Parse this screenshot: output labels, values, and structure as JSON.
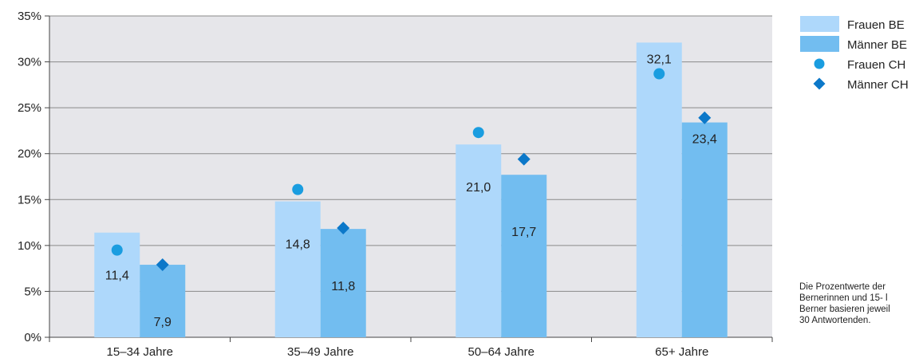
{
  "chart_data": {
    "type": "bar",
    "categories": [
      "15–34 Jahre",
      "35–49 Jahre",
      "50–64 Jahre",
      "65+ Jahre"
    ],
    "series": [
      {
        "name": "Frauen BE",
        "kind": "bar",
        "values": [
          11.4,
          14.8,
          21.0,
          32.1
        ],
        "labels": [
          "11,4",
          "14,8",
          "21,0",
          "32,1"
        ],
        "color": "#aed8fb"
      },
      {
        "name": "Männer BE",
        "kind": "bar",
        "values": [
          7.9,
          11.8,
          17.7,
          23.4
        ],
        "labels": [
          "7,9",
          "11,8",
          "17,7",
          "23,4"
        ],
        "color": "#72bdf0"
      },
      {
        "name": "Frauen CH",
        "kind": "marker-circle",
        "values": [
          9.5,
          16.1,
          22.3,
          28.7
        ],
        "color": "#1a9de0"
      },
      {
        "name": "Männer CH",
        "kind": "marker-diamond",
        "values": [
          7.9,
          11.9,
          19.4,
          23.9
        ],
        "color": "#0c78c9"
      }
    ],
    "yticks": [
      "0%",
      "5%",
      "10%",
      "15%",
      "20%",
      "25%",
      "30%",
      "35%"
    ],
    "ylim": [
      0,
      35
    ],
    "grid": true,
    "plot_background": "#e6e6ea",
    "legend_position": "right",
    "title": "",
    "xlabel": "",
    "ylabel": ""
  },
  "note": "Die Prozentwerte der\nBernerinnen und 15- l\nBerner basieren jeweil\n30 Antwortenden."
}
